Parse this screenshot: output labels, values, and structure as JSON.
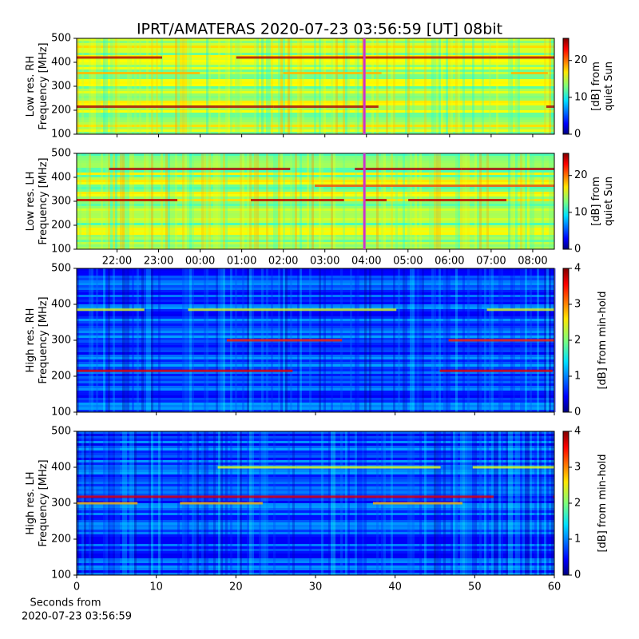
{
  "chart_data": [
    {
      "type": "heatmap",
      "title": "IPRT/AMATERAS 2020-07-23 03:56:59 [UT]   08bit",
      "ylabel": [
        "Low res. RH",
        "Frequency [MHz]"
      ],
      "ylim": [
        100,
        500
      ],
      "yticks": [
        100,
        200,
        300,
        400,
        500
      ],
      "xlim": [
        21.03,
        32.52
      ],
      "marker_x": 27.95,
      "marker_color": "#cc33cc",
      "colorbar": {
        "lim": [
          0,
          26
        ],
        "ticks": [
          0,
          10,
          20
        ],
        "label": [
          "[dB] from",
          "quiet Sun"
        ]
      }
    },
    {
      "type": "heatmap",
      "ylabel": [
        "Low res. LH",
        "Frequency [MHz]"
      ],
      "ylim": [
        100,
        500
      ],
      "yticks": [
        100,
        200,
        300,
        400,
        500
      ],
      "xlim": [
        21.03,
        32.52
      ],
      "marker_x": 27.95,
      "marker_color": "#cc33cc",
      "xticks": [
        {
          "value": 22,
          "label": "22:00"
        },
        {
          "value": 23,
          "label": "23:00"
        },
        {
          "value": 24,
          "label": "00:00"
        },
        {
          "value": 25,
          "label": "01:00"
        },
        {
          "value": 26,
          "label": "02:00"
        },
        {
          "value": 27,
          "label": "03:00"
        },
        {
          "value": 28,
          "label": "04:00"
        },
        {
          "value": 29,
          "label": "05:00"
        },
        {
          "value": 30,
          "label": "06:00"
        },
        {
          "value": 31,
          "label": "07:00"
        },
        {
          "value": 32,
          "label": "08:00"
        }
      ],
      "colorbar": {
        "lim": [
          0,
          26
        ],
        "ticks": [
          0,
          10,
          20
        ],
        "label": [
          "[dB] from",
          "quiet Sun"
        ]
      }
    },
    {
      "type": "heatmap",
      "ylabel": [
        "High res. RH",
        "Frequency [MHz]"
      ],
      "ylim": [
        100,
        500
      ],
      "yticks": [
        100,
        200,
        300,
        400,
        500
      ],
      "xlim": [
        0,
        60
      ],
      "colorbar": {
        "lim": [
          0,
          4
        ],
        "ticks": [
          0,
          1,
          2,
          3,
          4
        ],
        "label": [
          "[dB] from min-hold"
        ]
      }
    },
    {
      "type": "heatmap",
      "ylabel": [
        "High res. LH",
        "Frequency [MHz]"
      ],
      "ylim": [
        100,
        500
      ],
      "yticks": [
        100,
        200,
        300,
        400,
        500
      ],
      "xlim": [
        0,
        60
      ],
      "xticks": [
        0,
        10,
        20,
        30,
        40,
        50,
        60
      ],
      "xlabel": [
        "Seconds from",
        "2020-07-23 03:56:59"
      ],
      "colorbar": {
        "lim": [
          0,
          4
        ],
        "ticks": [
          0,
          1,
          2,
          3,
          4
        ],
        "label": [
          "[dB] from min-hold"
        ]
      }
    }
  ]
}
